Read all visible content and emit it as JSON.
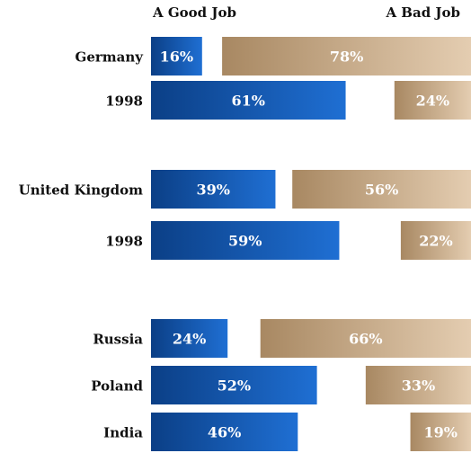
{
  "chart_data": {
    "type": "bar",
    "orientation": "horizontal",
    "legend_headers": [
      "A Good Job",
      "A Bad Job"
    ],
    "categories": [
      "Germany",
      "1998",
      "United Kingdom",
      "1998",
      "Russia",
      "Poland",
      "India"
    ],
    "series": [
      {
        "name": "A Good Job",
        "values": [
          16,
          61,
          39,
          59,
          24,
          52,
          46
        ],
        "labels": [
          "16%",
          "61%",
          "39%",
          "59%",
          "24%",
          "52%",
          "46%"
        ]
      },
      {
        "name": "A Bad Job",
        "values": [
          78,
          24,
          56,
          22,
          66,
          33,
          19
        ],
        "labels": [
          "78%",
          "24%",
          "56%",
          "22%",
          "66%",
          "33%",
          "19%"
        ]
      }
    ],
    "colors": {
      "good_dark": "#0b3f86",
      "good_light": "#1f6fd3",
      "bad_dark": "#a88862",
      "bad_light": "#e4cdb1"
    },
    "grid": false
  }
}
